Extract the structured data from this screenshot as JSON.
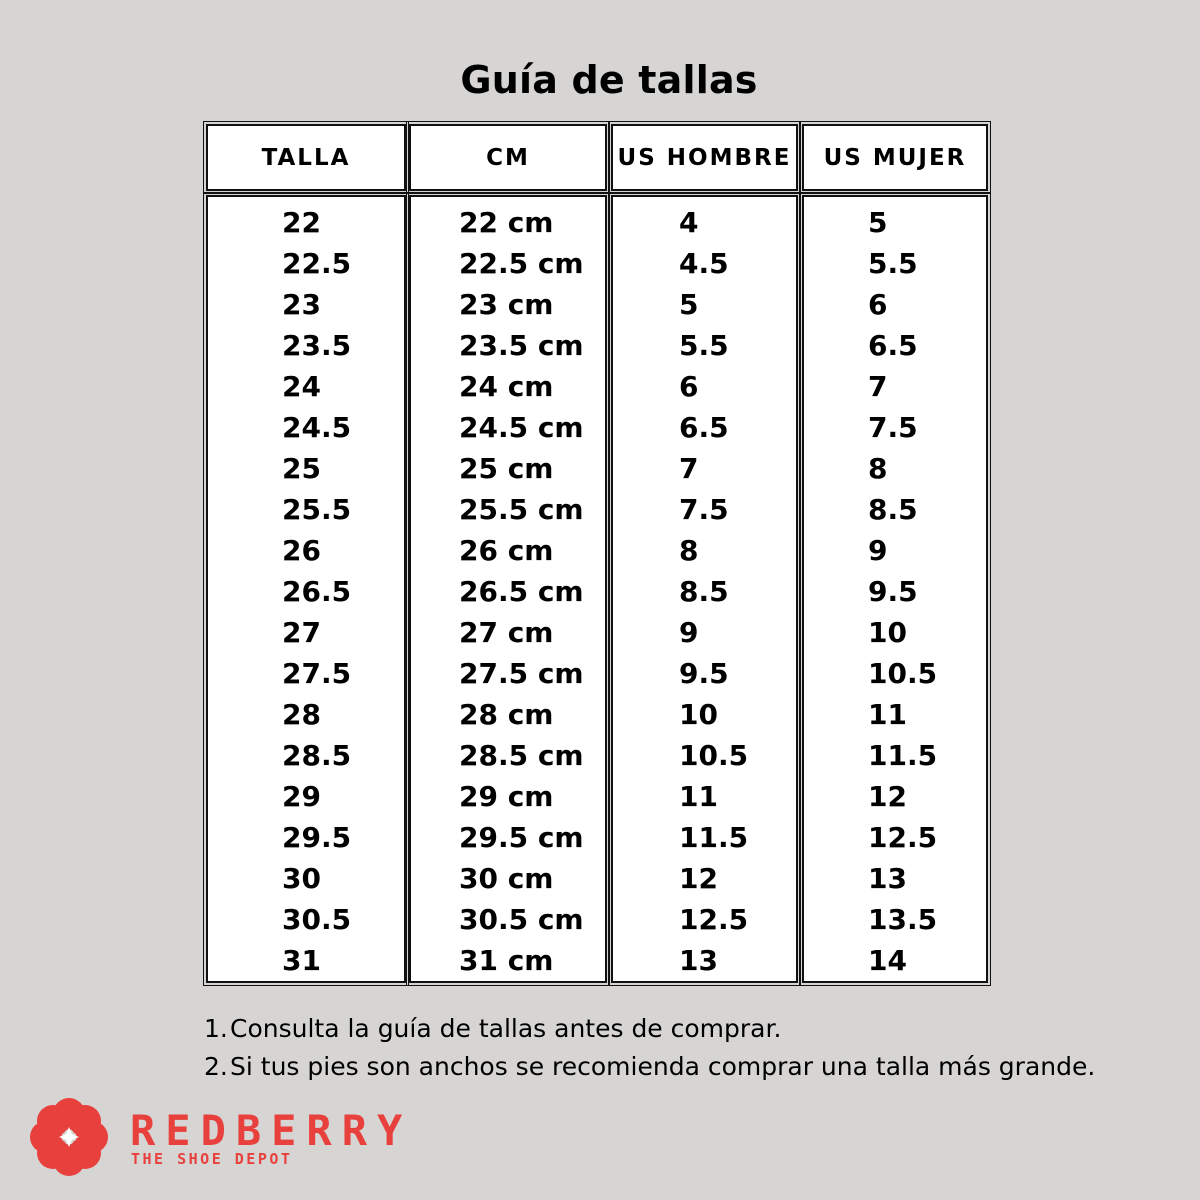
{
  "title": "Guía de tallas",
  "table": {
    "headers": [
      "TALLA",
      "CM",
      "US HOMBRE",
      "US MUJER"
    ],
    "columns": [
      [
        "22",
        "22.5",
        "23",
        "23.5",
        "24",
        "24.5",
        "25",
        "25.5",
        "26",
        "26.5",
        "27",
        "27.5",
        "28",
        "28.5",
        "29",
        "29.5",
        "30",
        "30.5",
        "31"
      ],
      [
        "22 cm",
        "22.5 cm",
        "23 cm",
        "23.5 cm",
        "24 cm",
        "24.5 cm",
        "25 cm",
        "25.5 cm",
        "26 cm",
        "26.5 cm",
        "27 cm",
        "27.5 cm",
        "28 cm",
        "28.5 cm",
        "29 cm",
        "29.5 cm",
        "30 cm",
        "30.5 cm",
        "31 cm"
      ],
      [
        "4",
        "4.5",
        "5",
        "5.5",
        "6",
        "6.5",
        "7",
        "7.5",
        "8",
        "8.5",
        "9",
        "9.5",
        "10",
        "10.5",
        "11",
        "11.5",
        "12",
        "12.5",
        "13"
      ],
      [
        "5",
        "5.5",
        "6",
        "6.5",
        "7",
        "7.5",
        "8",
        "8.5",
        "9",
        "9.5",
        "10",
        "10.5",
        "11",
        "11.5",
        "12",
        "12.5",
        "13",
        "13.5",
        "14"
      ]
    ]
  },
  "notes": [
    {
      "num": "1.",
      "text": "Consulta la guía de tallas antes de comprar."
    },
    {
      "num": "2.",
      "text": "Si tus pies son anchos se recomienda comprar una talla más grande."
    }
  ],
  "logo": {
    "brand": "REDBERRY",
    "tagline": "THE SHOE DEPOT",
    "icon": "redberry-flower-icon",
    "color": "#e8403c"
  }
}
